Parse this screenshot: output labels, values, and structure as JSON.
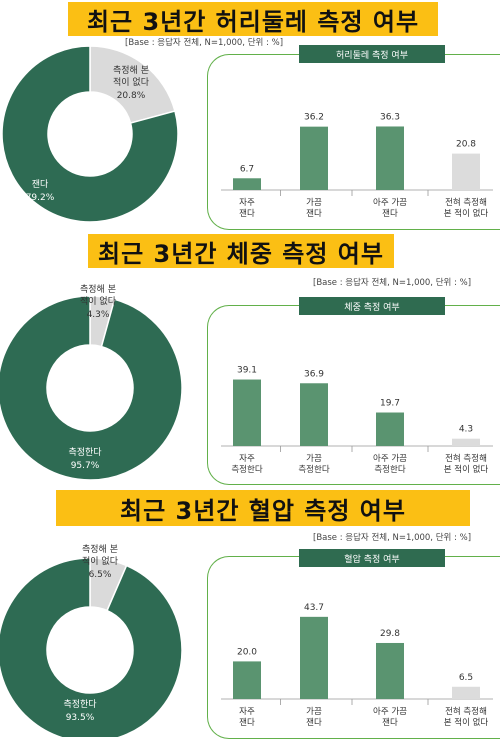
{
  "sections": [
    {
      "title": "최근 3년간 허리둘레 측정 여부",
      "base": "[Base : 응답자 전체, N=1,000, 단위 : %]",
      "panel_tag": "허리둘레 측정 여부",
      "donut": {
        "main_label": "잰다",
        "main_value": "79.2%",
        "minor_label_lines": [
          "측정해 본",
          "적이 없다"
        ],
        "minor_value": "20.8%"
      }
    },
    {
      "title": "최근 3년간 체중 측정 여부",
      "base": "[Base : 응답자 전체, N=1,000, 단위 : %]",
      "panel_tag": "체중 측정 여부",
      "donut": {
        "main_label": "측정한다",
        "main_value": "95.7%",
        "minor_label_lines": [
          "측정해 본",
          "적이 없다"
        ],
        "minor_value": "4.3%"
      }
    },
    {
      "title": "최근 3년간 혈압 측정 여부",
      "base": "[Base : 응답자 전체, N=1,000, 단위 : %]",
      "panel_tag": "혈압 측정 여부",
      "donut": {
        "main_label": "측정한다",
        "main_value": "93.5%",
        "minor_label_lines": [
          "측정해 본",
          "적이 없다"
        ],
        "minor_value": "6.5%"
      }
    }
  ],
  "colors": {
    "donut_main": "#2e6b53",
    "donut_minor": "#dadada",
    "bar_green": "#5a9470",
    "bar_gray": "#dcdcdc",
    "title_band": "#fbbf14",
    "panel_border": "#62b04a",
    "tag_bg": "#2f6b50"
  },
  "chart_data": [
    {
      "type": "pie",
      "title": "최근 3년간 허리둘레 측정 여부",
      "labels": [
        "잰다",
        "측정해 본 적이 없다"
      ],
      "values": [
        79.2,
        20.8
      ]
    },
    {
      "type": "bar",
      "title": "허리둘레 측정 여부",
      "categories": [
        [
          "자주",
          "잰다"
        ],
        [
          "가끔",
          "잰다"
        ],
        [
          "아주 가끔",
          "잰다"
        ],
        [
          "전혀 측정해",
          "본 적이 없다"
        ]
      ],
      "values": [
        6.7,
        36.2,
        36.3,
        20.8
      ],
      "ylim": [
        0,
        50
      ],
      "grid": false
    },
    {
      "type": "pie",
      "title": "최근 3년간 체중 측정 여부",
      "labels": [
        "측정한다",
        "측정해 본 적이 없다"
      ],
      "values": [
        95.7,
        4.3
      ]
    },
    {
      "type": "bar",
      "title": "체중 측정 여부",
      "categories": [
        [
          "자주",
          "측정한다"
        ],
        [
          "가끔",
          "측정한다"
        ],
        [
          "아주 가끔",
          "측정한다"
        ],
        [
          "전혀 측정해",
          "본 적이 없다"
        ]
      ],
      "values": [
        39.1,
        36.9,
        19.7,
        4.3
      ],
      "ylim": [
        0,
        50
      ],
      "grid": false
    },
    {
      "type": "pie",
      "title": "최근 3년간 혈압 측정 여부",
      "labels": [
        "측정한다",
        "측정해 본 적이 없다"
      ],
      "values": [
        93.5,
        6.5
      ]
    },
    {
      "type": "bar",
      "title": "혈압 측정 여부",
      "categories": [
        [
          "자주",
          "잰다"
        ],
        [
          "가끔",
          "잰다"
        ],
        [
          "아주 가끔",
          "잰다"
        ],
        [
          "전혀 측정해",
          "본 적이 없다"
        ]
      ],
      "values": [
        20.0,
        43.7,
        29.8,
        6.5
      ],
      "ylim": [
        0,
        50
      ],
      "grid": false
    }
  ]
}
